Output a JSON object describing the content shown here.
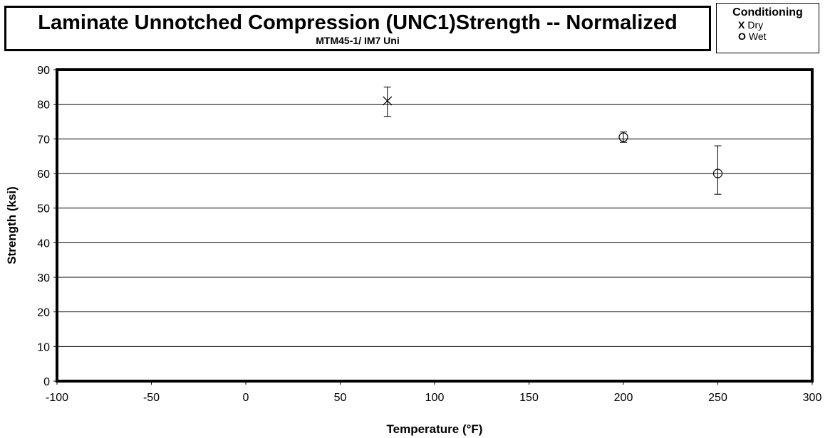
{
  "header": {
    "title": "Laminate Unnotched Compression (UNC1)Strength  -- Normalized",
    "subtitle": "MTM45-1/ IM7 Uni"
  },
  "legend": {
    "title": "Conditioning",
    "items": [
      {
        "symbol": "X",
        "label": "Dry"
      },
      {
        "symbol": "O",
        "label": "Wet"
      }
    ]
  },
  "chart_data": {
    "type": "scatter",
    "xlabel": "Temperature (°F)",
    "ylabel": "Strength (ksi)",
    "xlim": [
      -100,
      300
    ],
    "ylim": [
      0,
      90
    ],
    "xticks": [
      -100,
      -50,
      0,
      50,
      100,
      150,
      200,
      250,
      300
    ],
    "yticks": [
      0,
      10,
      20,
      30,
      40,
      50,
      60,
      70,
      80,
      90
    ],
    "grid": "horizontal",
    "series": [
      {
        "name": "Dry",
        "marker": "x",
        "points": [
          {
            "x": 75,
            "y": 81,
            "low": 76.5,
            "high": 85
          }
        ]
      },
      {
        "name": "Wet",
        "marker": "o",
        "points": [
          {
            "x": 200,
            "y": 70.5,
            "low": 69,
            "high": 72
          },
          {
            "x": 250,
            "y": 60,
            "low": 54,
            "high": 68
          }
        ]
      }
    ]
  }
}
